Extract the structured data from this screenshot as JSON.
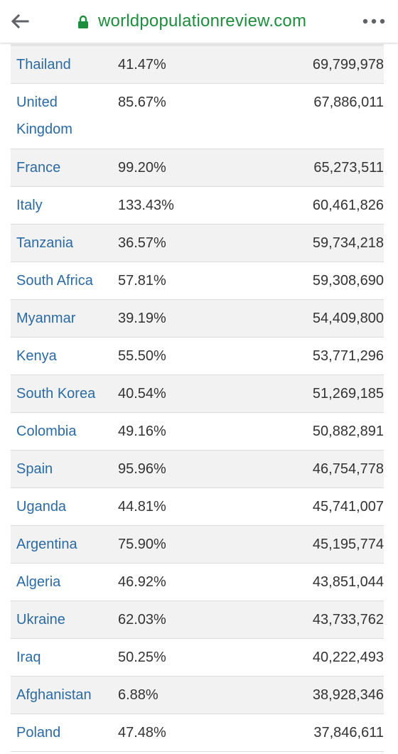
{
  "browser": {
    "url": "worldpopulationreview.com",
    "back_icon": "arrow-left-icon",
    "lock_icon": "lock-icon",
    "menu_icon": "more-horizontal-icon"
  },
  "colors": {
    "link": "#2b6aa3",
    "text": "#333333",
    "url": "#1e8e3e",
    "row_stripe": "#f2f2f2"
  },
  "table": {
    "rows": [
      {
        "country": "Thailand",
        "percent": "41.47%",
        "population": "69,799,978"
      },
      {
        "country": "United Kingdom",
        "percent": "85.67%",
        "population": "67,886,011"
      },
      {
        "country": "France",
        "percent": "99.20%",
        "population": "65,273,511"
      },
      {
        "country": "Italy",
        "percent": "133.43%",
        "population": "60,461,826"
      },
      {
        "country": "Tanzania",
        "percent": "36.57%",
        "population": "59,734,218"
      },
      {
        "country": "South Africa",
        "percent": "57.81%",
        "population": "59,308,690"
      },
      {
        "country": "Myanmar",
        "percent": "39.19%",
        "population": "54,409,800"
      },
      {
        "country": "Kenya",
        "percent": "55.50%",
        "population": "53,771,296"
      },
      {
        "country": "South Korea",
        "percent": "40.54%",
        "population": "51,269,185"
      },
      {
        "country": "Colombia",
        "percent": "49.16%",
        "population": "50,882,891"
      },
      {
        "country": "Spain",
        "percent": "95.96%",
        "population": "46,754,778"
      },
      {
        "country": "Uganda",
        "percent": "44.81%",
        "population": "45,741,007"
      },
      {
        "country": "Argentina",
        "percent": "75.90%",
        "population": "45,195,774"
      },
      {
        "country": "Algeria",
        "percent": "46.92%",
        "population": "43,851,044"
      },
      {
        "country": "Ukraine",
        "percent": "62.03%",
        "population": "43,733,762"
      },
      {
        "country": "Iraq",
        "percent": "50.25%",
        "population": "40,222,493"
      },
      {
        "country": "Afghanistan",
        "percent": "6.88%",
        "population": "38,928,346"
      },
      {
        "country": "Poland",
        "percent": "47.48%",
        "population": "37,846,611"
      }
    ]
  }
}
